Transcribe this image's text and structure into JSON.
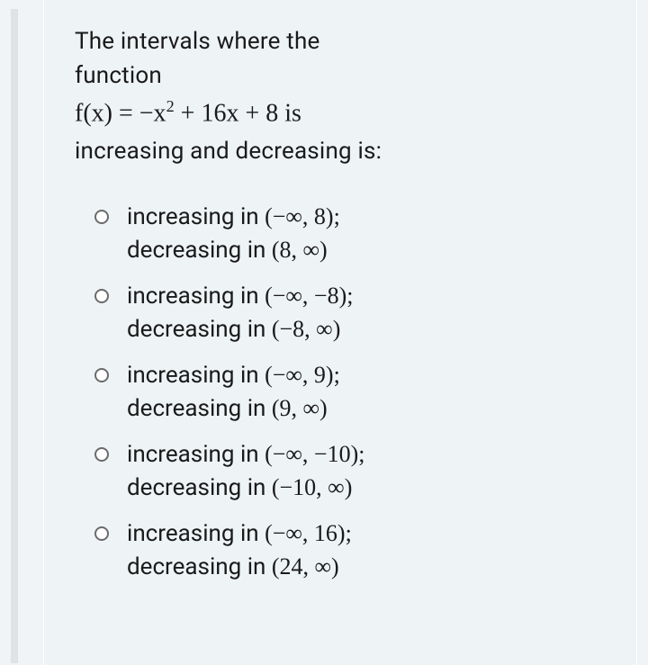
{
  "colors": {
    "page_bg": "#f0f4f7",
    "card_bg": "#eef3f6",
    "rail": "#dfe3e6",
    "text": "#1a1a1a",
    "radio_border": "#6b6b6b"
  },
  "typography": {
    "body_fontsize": 26,
    "math_fontsize": 28,
    "math_family": "Times New Roman",
    "body_family": "sans-serif"
  },
  "question": {
    "line1": "The intervals where the",
    "line2": "function",
    "formula_prefix": "f(x) = −x",
    "formula_exp": "2",
    "formula_suffix": " + 16x + 8 is",
    "line4": "increasing and decreasing is:"
  },
  "options": [
    {
      "inc_label": "increasing in ",
      "inc_interval": "(−∞, 8);",
      "dec_label": "decreasing in ",
      "dec_interval": "(8, ∞)",
      "selected": false
    },
    {
      "inc_label": "increasing in ",
      "inc_interval": "(−∞, −8);",
      "dec_label": "decreasing in ",
      "dec_interval": "(−8, ∞)",
      "selected": false
    },
    {
      "inc_label": "increasing in ",
      "inc_interval": "(−∞, 9);",
      "dec_label": "decreasing in ",
      "dec_interval": "(9, ∞)",
      "selected": false
    },
    {
      "inc_label": "increasing in ",
      "inc_interval": "(−∞, −10);",
      "dec_label": "decreasing in ",
      "dec_interval": "(−10, ∞)",
      "selected": false
    },
    {
      "inc_label": "increasing in ",
      "inc_interval": "(−∞, 16);",
      "dec_label": "decreasing in ",
      "dec_interval": "(24, ∞)",
      "selected": false
    }
  ]
}
